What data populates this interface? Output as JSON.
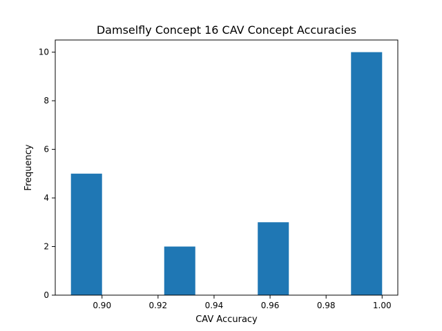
{
  "chart_data": {
    "type": "bar",
    "title": "Damselfly Concept 16 CAV Concept Accuracies",
    "xlabel": "CAV Accuracy",
    "ylabel": "Frequency",
    "bins": [
      {
        "x0": 0.8889,
        "x1": 0.9,
        "value": 5
      },
      {
        "x0": 0.9,
        "x1": 0.9111,
        "value": 0
      },
      {
        "x0": 0.9111,
        "x1": 0.9222,
        "value": 0
      },
      {
        "x0": 0.9222,
        "x1": 0.9333,
        "value": 2
      },
      {
        "x0": 0.9333,
        "x1": 0.9444,
        "value": 0
      },
      {
        "x0": 0.9444,
        "x1": 0.9556,
        "value": 0
      },
      {
        "x0": 0.9556,
        "x1": 0.9667,
        "value": 3
      },
      {
        "x0": 0.9667,
        "x1": 0.9778,
        "value": 0
      },
      {
        "x0": 0.9778,
        "x1": 0.9889,
        "value": 0
      },
      {
        "x0": 0.9889,
        "x1": 1.0,
        "value": 10
      }
    ],
    "xlim": [
      0.8833,
      1.0056
    ],
    "ylim": [
      0,
      10.5
    ],
    "xticks": [
      "0.90",
      "0.92",
      "0.94",
      "0.96",
      "0.98",
      "1.00"
    ],
    "xtick_values": [
      0.9,
      0.92,
      0.94,
      0.96,
      0.98,
      1.0
    ],
    "yticks": [
      "0",
      "2",
      "4",
      "6",
      "8",
      "10"
    ],
    "ytick_values": [
      0,
      2,
      4,
      6,
      8,
      10
    ],
    "bar_color": "#1f77b4",
    "grid": false,
    "legend": "none"
  }
}
